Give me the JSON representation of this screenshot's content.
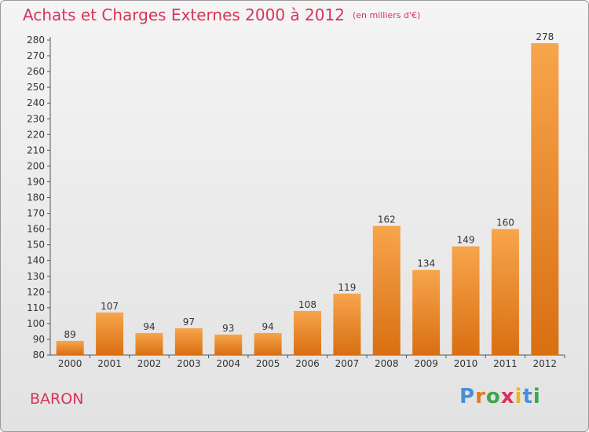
{
  "header": {
    "title": "Achats et Charges Externes 2000 à 2012",
    "unit": "(en milliers d'€)"
  },
  "footer": {
    "town": "BARON",
    "logo": "Proxiti"
  },
  "chart_data": {
    "type": "bar",
    "title": "Achats et Charges Externes 2000 à 2012",
    "subtitle": "(en milliers d'€)",
    "categories": [
      "2000",
      "2001",
      "2002",
      "2003",
      "2004",
      "2005",
      "2006",
      "2007",
      "2008",
      "2009",
      "2010",
      "2011",
      "2012"
    ],
    "values": [
      89,
      107,
      94,
      97,
      93,
      94,
      108,
      119,
      162,
      134,
      149,
      160,
      278
    ],
    "ylim": [
      80,
      280
    ],
    "ytick_step": 10,
    "grid": false,
    "bar_color": "#f0922e"
  }
}
